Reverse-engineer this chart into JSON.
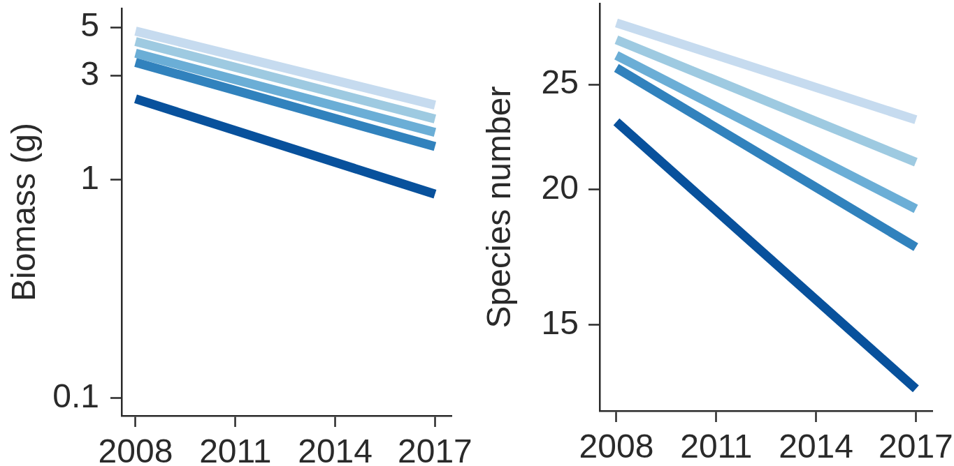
{
  "chart_data": [
    {
      "type": "line",
      "ylabel": "Biomass (g)",
      "xlim": [
        "2007-08",
        "2017-07"
      ],
      "xticks": [
        "2008",
        "2011",
        "2014",
        "2017"
      ],
      "log": "y",
      "ylim": [
        0.083,
        6.1
      ],
      "yticks": [
        0.1,
        1,
        3,
        5
      ],
      "grid": false,
      "legend": false,
      "marker": "none",
      "line_style": "solid",
      "series": [
        {
          "color": "#c6dbef",
          "x": [
            "2008",
            "2017"
          ],
          "values": [
            4.8,
            2.2
          ]
        },
        {
          "color": "#9ecae1",
          "x": [
            "2008",
            "2017"
          ],
          "values": [
            4.3,
            1.9
          ]
        },
        {
          "color": "#6baed6",
          "x": [
            "2008",
            "2017"
          ],
          "values": [
            3.8,
            1.65
          ]
        },
        {
          "color": "#3182bd",
          "x": [
            "2008",
            "2017"
          ],
          "values": [
            3.45,
            1.42
          ]
        },
        {
          "color": "#08519c",
          "x": [
            "2008",
            "2017"
          ],
          "values": [
            2.35,
            0.86
          ]
        }
      ]
    },
    {
      "type": "line",
      "ylabel": "Species number",
      "xlim": [
        "2007-07",
        "2017-07"
      ],
      "xticks": [
        "2008",
        "2011",
        "2014",
        "2017"
      ],
      "log": "y",
      "ylim": [
        12.5,
        29.7
      ],
      "yticks": [
        15,
        20,
        25
      ],
      "grid": false,
      "legend": false,
      "marker": "none",
      "line_style": "solid",
      "series": [
        {
          "color": "#c6dbef",
          "x": [
            "2008",
            "2017"
          ],
          "values": [
            28.5,
            23.2
          ]
        },
        {
          "color": "#9ecae1",
          "x": [
            "2008",
            "2017"
          ],
          "values": [
            27.5,
            21.2
          ]
        },
        {
          "color": "#6baed6",
          "x": [
            "2008",
            "2017"
          ],
          "values": [
            26.6,
            19.2
          ]
        },
        {
          "color": "#3182bd",
          "x": [
            "2008",
            "2017"
          ],
          "values": [
            25.9,
            17.7
          ]
        },
        {
          "color": "#08519c",
          "x": [
            "2008",
            "2017"
          ],
          "values": [
            23.1,
            13.1
          ]
        }
      ]
    }
  ]
}
